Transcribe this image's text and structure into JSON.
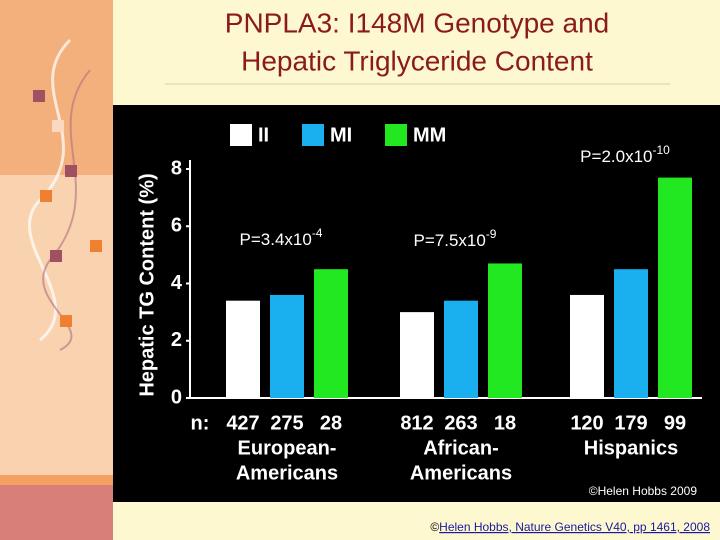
{
  "chart_data": {
    "type": "bar",
    "title_lines": [
      "PNPLA3: I148M Genotype and",
      "Hepatic Triglyceride Content"
    ],
    "y_label": "Hepatic TG Content (%)",
    "categories": [
      [
        "European-",
        "Americans"
      ],
      [
        "African-",
        "Americans"
      ],
      [
        "Hispanics"
      ]
    ],
    "n_label": "n:",
    "series": [
      {
        "name": "II",
        "color": "#ffffff",
        "values": [
          3.4,
          3.0,
          3.6
        ],
        "n": [
          427,
          812,
          120
        ]
      },
      {
        "name": "MI",
        "color": "#1ab0f0",
        "values": [
          3.6,
          3.4,
          4.5
        ],
        "n": [
          275,
          263,
          179
        ]
      },
      {
        "name": "MM",
        "color": "#22e822",
        "values": [
          4.5,
          4.7,
          7.7
        ],
        "n": [
          28,
          18,
          99
        ]
      }
    ],
    "p_values": [
      {
        "base": "P=3.4x10",
        "exponent": "-4"
      },
      {
        "base": "P=7.5x10",
        "exponent": "-9"
      },
      {
        "base": "P=2.0x10",
        "exponent": "-10"
      }
    ],
    "ylim": [
      0,
      8
    ],
    "yticks": [
      0,
      2,
      4,
      6,
      8
    ],
    "chart_credit": "©Helen Hobbs 2009",
    "footer_symbol": "©",
    "footer_link": "Helen Hobbs, Nature Genetics V40, pp 1461, 2008"
  }
}
